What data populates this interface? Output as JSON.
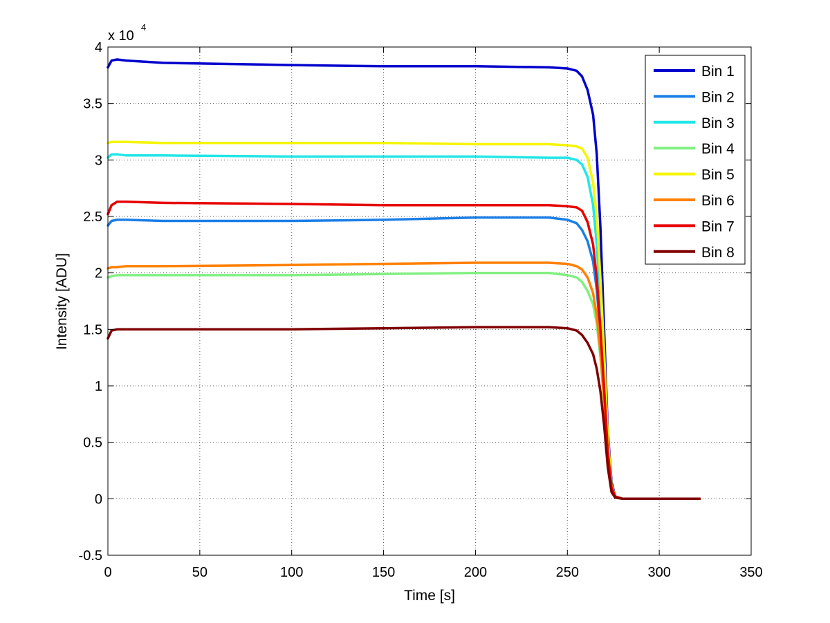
{
  "chart_data": {
    "type": "line",
    "xlabel": "Time [s]",
    "ylabel": "Intensity [ADU]",
    "exponent": {
      "base": "x 10",
      "power": "4"
    },
    "xlim": [
      0,
      350
    ],
    "ylim": [
      -0.5,
      4
    ],
    "x_ticks": [
      0,
      50,
      100,
      150,
      200,
      250,
      300,
      350
    ],
    "y_ticks": [
      -0.5,
      0,
      0.5,
      1,
      1.5,
      2,
      2.5,
      3,
      3.5,
      4
    ],
    "y_tick_labels": [
      "-0.5",
      "0",
      "0.5",
      "1",
      "1.5",
      "2",
      "2.5",
      "3",
      "3.5",
      "4"
    ],
    "grid": true,
    "legend_position": "top-right",
    "series": [
      {
        "name": "Bin 1",
        "color": "#0000cc",
        "x": [
          0,
          2,
          5,
          10,
          30,
          100,
          150,
          200,
          240,
          250,
          255,
          258,
          261,
          264,
          266,
          268,
          270,
          272,
          274,
          276,
          280,
          300,
          322
        ],
        "y": [
          3.82,
          3.88,
          3.89,
          3.88,
          3.86,
          3.84,
          3.83,
          3.83,
          3.82,
          3.81,
          3.79,
          3.74,
          3.62,
          3.4,
          3.05,
          2.4,
          1.5,
          0.6,
          0.15,
          0.02,
          0,
          0,
          0
        ]
      },
      {
        "name": "Bin 2",
        "color": "#1a7ee6",
        "x": [
          0,
          2,
          5,
          10,
          30,
          100,
          150,
          200,
          240,
          250,
          255,
          258,
          261,
          264,
          266,
          268,
          270,
          272,
          274,
          276,
          280,
          300,
          322
        ],
        "y": [
          2.42,
          2.46,
          2.47,
          2.47,
          2.46,
          2.46,
          2.47,
          2.49,
          2.49,
          2.47,
          2.44,
          2.38,
          2.28,
          2.1,
          1.85,
          1.45,
          0.95,
          0.4,
          0.1,
          0.02,
          0,
          0,
          0
        ]
      },
      {
        "name": "Bin 3",
        "color": "#22e6e6",
        "x": [
          0,
          2,
          5,
          10,
          30,
          100,
          150,
          200,
          240,
          250,
          255,
          258,
          261,
          264,
          266,
          268,
          270,
          272,
          274,
          276,
          280,
          300,
          322
        ],
        "y": [
          3.02,
          3.05,
          3.05,
          3.04,
          3.04,
          3.03,
          3.03,
          3.03,
          3.02,
          3.02,
          3.0,
          2.96,
          2.85,
          2.6,
          2.25,
          1.7,
          1.1,
          0.45,
          0.1,
          0.02,
          0,
          0,
          0
        ]
      },
      {
        "name": "Bin 4",
        "color": "#80f080",
        "x": [
          0,
          2,
          5,
          10,
          30,
          100,
          150,
          200,
          240,
          250,
          255,
          258,
          261,
          264,
          266,
          268,
          270,
          272,
          274,
          276,
          280,
          300,
          322
        ],
        "y": [
          1.96,
          1.97,
          1.98,
          1.98,
          1.98,
          1.98,
          1.99,
          2.0,
          2.0,
          1.98,
          1.96,
          1.92,
          1.84,
          1.72,
          1.55,
          1.25,
          0.85,
          0.35,
          0.08,
          0.02,
          0,
          0,
          0
        ]
      },
      {
        "name": "Bin 5",
        "color": "#f5f500",
        "x": [
          0,
          2,
          5,
          10,
          30,
          100,
          150,
          200,
          240,
          250,
          255,
          258,
          261,
          264,
          266,
          268,
          270,
          272,
          274,
          276,
          280,
          300,
          322
        ],
        "y": [
          3.15,
          3.16,
          3.16,
          3.16,
          3.15,
          3.15,
          3.15,
          3.14,
          3.14,
          3.13,
          3.12,
          3.1,
          3.02,
          2.8,
          2.5,
          1.95,
          1.3,
          0.55,
          0.12,
          0.02,
          0,
          0,
          0
        ]
      },
      {
        "name": "Bin 6",
        "color": "#ff8000",
        "x": [
          0,
          2,
          5,
          10,
          30,
          100,
          150,
          200,
          240,
          250,
          255,
          258,
          261,
          264,
          266,
          268,
          270,
          272,
          274,
          276,
          280,
          300,
          322
        ],
        "y": [
          2.04,
          2.05,
          2.05,
          2.06,
          2.06,
          2.07,
          2.08,
          2.09,
          2.09,
          2.08,
          2.06,
          2.03,
          1.96,
          1.82,
          1.62,
          1.3,
          0.88,
          0.38,
          0.09,
          0.02,
          0,
          0,
          0
        ]
      },
      {
        "name": "Bin 7",
        "color": "#e60000",
        "x": [
          0,
          2,
          5,
          10,
          30,
          100,
          150,
          200,
          240,
          250,
          255,
          258,
          261,
          264,
          266,
          268,
          270,
          272,
          274,
          276,
          280,
          300,
          322
        ],
        "y": [
          2.52,
          2.6,
          2.63,
          2.63,
          2.62,
          2.61,
          2.6,
          2.6,
          2.6,
          2.59,
          2.58,
          2.55,
          2.45,
          2.25,
          1.95,
          1.5,
          0.98,
          0.42,
          0.1,
          0.02,
          0,
          0,
          0
        ]
      },
      {
        "name": "Bin 8",
        "color": "#800000",
        "x": [
          0,
          2,
          5,
          10,
          30,
          100,
          150,
          200,
          240,
          250,
          255,
          258,
          261,
          264,
          266,
          268,
          270,
          272,
          274,
          276,
          280,
          300,
          322
        ],
        "y": [
          1.42,
          1.49,
          1.5,
          1.5,
          1.5,
          1.5,
          1.51,
          1.52,
          1.52,
          1.51,
          1.49,
          1.45,
          1.38,
          1.28,
          1.15,
          0.95,
          0.65,
          0.28,
          0.06,
          0.01,
          0,
          0,
          0
        ]
      }
    ]
  }
}
